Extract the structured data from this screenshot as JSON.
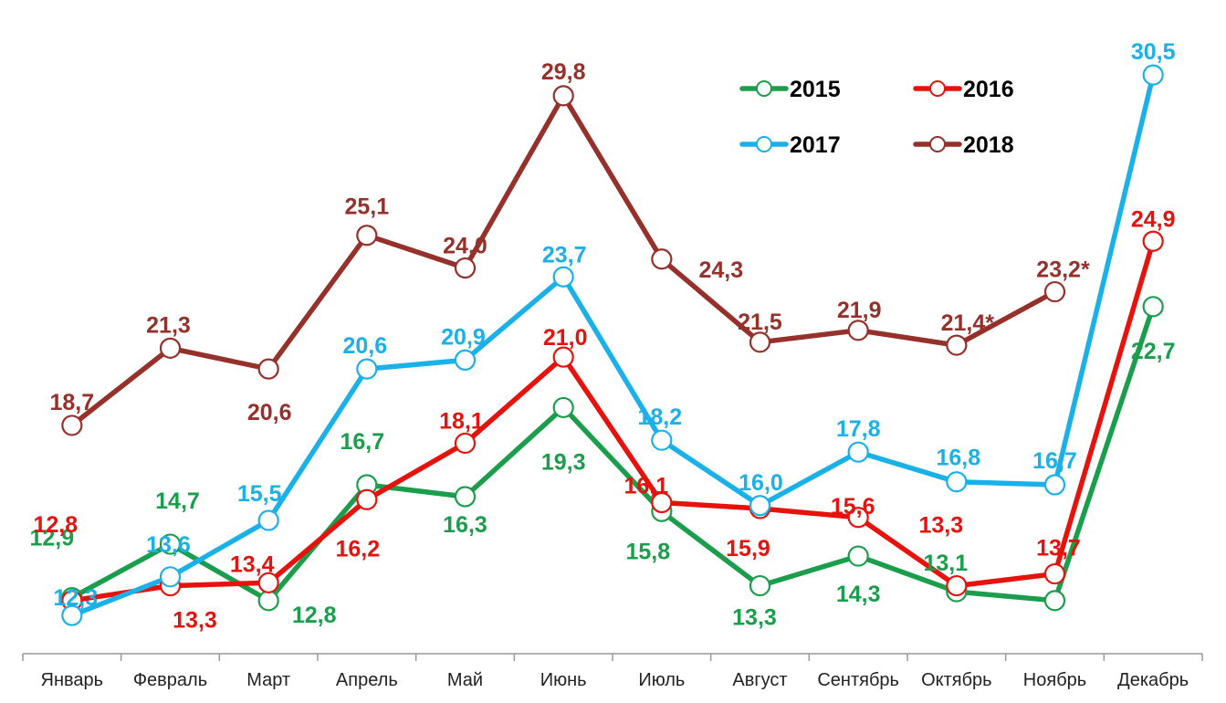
{
  "chart_data": {
    "type": "line",
    "title": "",
    "xlabel": "",
    "ylabel": "",
    "ylim": [
      11,
      32
    ],
    "grid": false,
    "legend": "top-right",
    "categories": [
      "Январь",
      "Февраль",
      "Март",
      "Апрель",
      "Май",
      "Июнь",
      "Июль",
      "Август",
      "Сентябрь",
      "Октябрь",
      "Ноябрь",
      "Декабрь"
    ],
    "series": [
      {
        "name": "2015",
        "color": "#1a9e4b",
        "values": [
          12.9,
          14.7,
          12.8,
          16.7,
          16.3,
          19.3,
          15.8,
          13.3,
          14.3,
          13.1,
          12.8,
          22.7
        ],
        "labels": [
          "12,9",
          "14,7",
          "12,8",
          "16,7",
          "16,3",
          "19,3",
          "15,8",
          "13,3",
          "14,3",
          "13,1",
          "",
          "22,7"
        ]
      },
      {
        "name": "2016",
        "color": "#e8120c",
        "values": [
          12.8,
          13.3,
          13.4,
          16.2,
          18.1,
          21.0,
          16.1,
          15.9,
          15.6,
          13.3,
          13.7,
          24.9
        ],
        "labels": [
          "12,8",
          "13,3",
          "13,4",
          "16,2",
          "18,1",
          "21,0",
          "16,1",
          "15,9",
          "15,6",
          "13,3",
          "13,7",
          "24,9"
        ]
      },
      {
        "name": "2017",
        "color": "#1ab0e8",
        "values": [
          12.3,
          13.6,
          15.5,
          20.6,
          20.9,
          23.7,
          18.2,
          16.0,
          17.8,
          16.8,
          16.7,
          30.5
        ],
        "labels": [
          "12,3",
          "13,6",
          "15,5",
          "20,6",
          "20,9",
          "23,7",
          "18,2",
          "16,0",
          "17,8",
          "16,8",
          "16,7",
          "30,5"
        ]
      },
      {
        "name": "2018",
        "color": "#96302a",
        "values": [
          18.7,
          21.3,
          20.6,
          25.1,
          24.0,
          29.8,
          24.3,
          21.5,
          21.9,
          21.4,
          23.2,
          null
        ],
        "labels": [
          "18,7",
          "21,3",
          "20,6",
          "25,1",
          "24,0",
          "29,8",
          "24,3",
          "21,5",
          "21,9",
          "21,4*",
          "23,2*",
          ""
        ]
      }
    ]
  }
}
